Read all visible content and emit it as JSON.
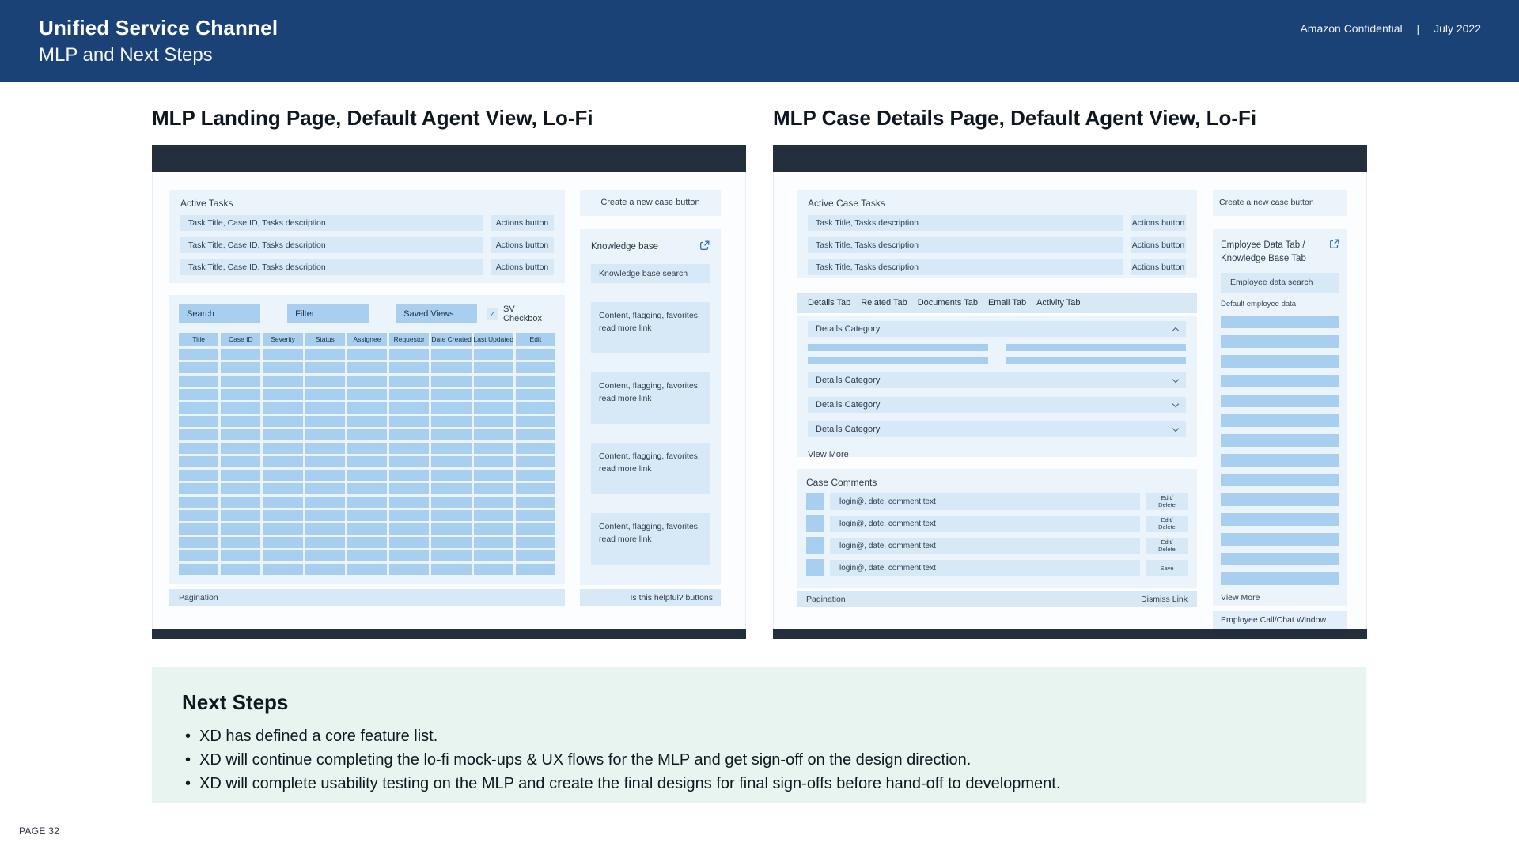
{
  "header": {
    "title": "Unified Service Channel",
    "subtitle": "MLP and Next Steps",
    "confidential": "Amazon Confidential",
    "separator": "|",
    "date": "July 2022"
  },
  "landing": {
    "title": "MLP Landing Page, Default Agent View, Lo-Fi",
    "active_tasks": {
      "title": "Active Tasks",
      "rows": [
        {
          "label": "Task Title, Case ID, Tasks description",
          "action": "Actions button"
        },
        {
          "label": "Task Title, Case ID, Tasks description",
          "action": "Actions button"
        },
        {
          "label": "Task Title, Case ID, Tasks description",
          "action": "Actions button"
        }
      ]
    },
    "controls": {
      "search": "Search",
      "filter": "Filter",
      "saved_views": "Saved Views",
      "check_glyph": "✓",
      "checkbox_label": "SV Checkbox"
    },
    "table": {
      "columns": [
        "Title",
        "Case ID",
        "Severity",
        "Status",
        "Assignee",
        "Requestor",
        "Date Created",
        "Last Updated",
        "Edit"
      ],
      "body_rows": 17
    },
    "pagination": "Pagination",
    "sidebar": {
      "create_button": "Create a new case button",
      "kb_title": "Knowledge base",
      "kb_search": "Knowledge base search",
      "card_text": "Content, flagging, favorites, read more link",
      "card_count": 4,
      "helpful": "Is this helpful? buttons"
    }
  },
  "case_details": {
    "title": "MLP Case Details Page, Default Agent View, Lo-Fi",
    "active_tasks": {
      "title": "Active Case Tasks",
      "rows": [
        {
          "label": "Task Title, Tasks description",
          "action": "Actions button"
        },
        {
          "label": "Task Title, Tasks description",
          "action": "Actions button"
        },
        {
          "label": "Task Title, Tasks description",
          "action": "Actions button"
        }
      ]
    },
    "tabs": [
      "Details Tab",
      "Related Tab",
      "Documents Tab",
      "Email Tab",
      "Activity Tab"
    ],
    "details": {
      "expanded_label": "Details Category",
      "collapsed": [
        "Details Category",
        "Details Category",
        "Details Category"
      ],
      "view_more": "View More"
    },
    "comments": {
      "title": "Case Comments",
      "rows": [
        {
          "text": "login@, date, comment text",
          "button_line1": "Edit/",
          "button_line2": "Delete"
        },
        {
          "text": "login@, date, comment text",
          "button_line1": "Edit/",
          "button_line2": "Delete"
        },
        {
          "text": "login@, date, comment text",
          "button_line1": "Edit/",
          "button_line2": "Delete"
        },
        {
          "text": "login@, date, comment text",
          "button_line1": "Save",
          "button_line2": ""
        }
      ],
      "pagination": "Pagination",
      "dismiss": "Dismiss Link"
    },
    "sidebar": {
      "create_button": "Create a new case button",
      "panel_title_line1": "Employee Data Tab /",
      "panel_title_line2": "Knowledge Base Tab",
      "search": "Employee data search",
      "default_label": "Default employee data",
      "bar_count": 14,
      "view_more": "View More",
      "call_window": "Employee Call/Chat Window"
    }
  },
  "next_steps": {
    "title": "Next Steps",
    "bullets": [
      "XD has defined a core feature list.",
      "XD will continue completing the lo-fi mock-ups & UX flows for the MLP and get sign-off on the design direction.",
      "XD will complete usability testing on the MLP and create the final designs for final sign-offs before hand-off to development."
    ]
  },
  "footer": {
    "page": "PAGE 32"
  },
  "colors": {
    "header_bg": "#1B4277",
    "wireframe_chrome": "#242F3D",
    "panel_light": "#EBF4FB",
    "bar_mid": "#D7E8F7",
    "bar_dark": "#A9CFF0",
    "next_steps_bg": "#E8F4EF",
    "link_icon": "#2E6FC4"
  }
}
